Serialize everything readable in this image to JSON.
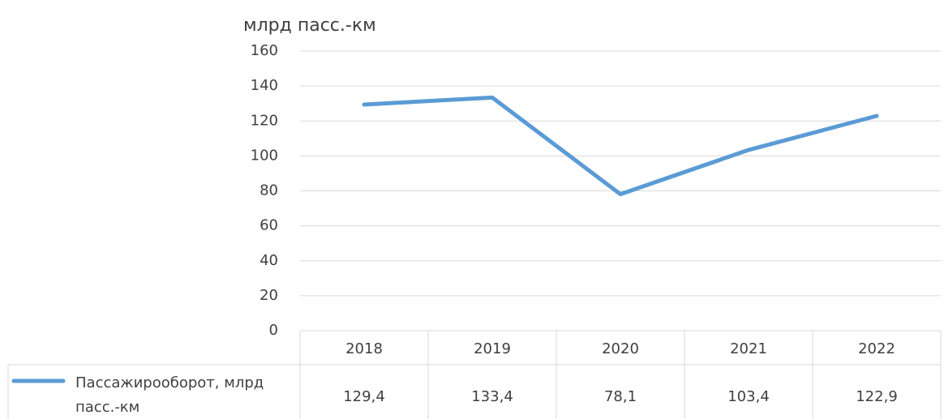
{
  "chart_data": {
    "type": "line",
    "y_axis_label": "млрд пасс.-км",
    "categories": [
      "2018",
      "2019",
      "2020",
      "2021",
      "2022"
    ],
    "series": [
      {
        "name": "Пассажирооборот, млрд пасс.-км",
        "color": "#5b9bd5",
        "values": [
          129.4,
          133.4,
          78.1,
          103.4,
          122.9
        ],
        "value_labels": [
          "129,4",
          "133,4",
          "78,1",
          "103,4",
          "122,9"
        ]
      }
    ],
    "ylim": [
      0,
      160
    ],
    "yticks": [
      0,
      20,
      40,
      60,
      80,
      100,
      120,
      140,
      160
    ],
    "grid": true,
    "data_table": true
  }
}
